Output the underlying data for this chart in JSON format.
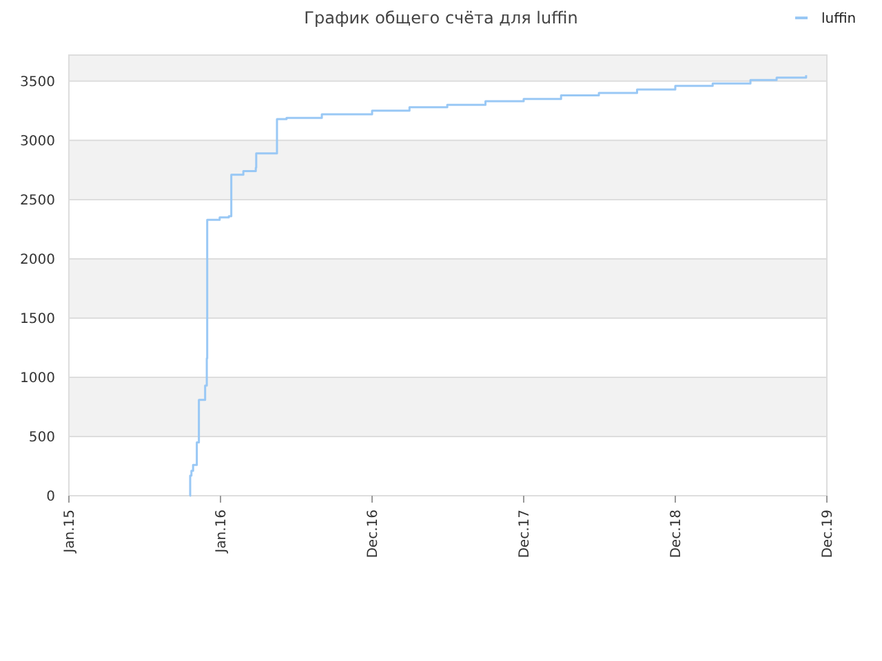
{
  "chart_data": {
    "type": "step",
    "title": "График общего счёта для luffin",
    "x": [
      "2015-10-19",
      "2015-10-20",
      "2015-10-23",
      "2015-10-27",
      "2015-11-05",
      "2015-11-10",
      "2015-11-25",
      "2015-11-29",
      "2015-11-30",
      "2015-12-30",
      "2016-01-21",
      "2016-01-27",
      "2016-02-25",
      "2016-03-26",
      "2016-03-27",
      "2016-05-16",
      "2016-06-08",
      "2016-09-01",
      "2016-12-31",
      "2017-03-31",
      "2017-06-30",
      "2017-09-30",
      "2017-12-31",
      "2018-03-31",
      "2018-06-30",
      "2018-09-30",
      "2018-12-31",
      "2019-03-31",
      "2019-06-30",
      "2019-09-01",
      "2019-11-11"
    ],
    "series": [
      {
        "name": "luffin",
        "color": "#99c8f5",
        "values": [
          0,
          170,
          210,
          260,
          450,
          810,
          930,
          1160,
          2330,
          2350,
          2360,
          2710,
          2740,
          2770,
          2890,
          3180,
          3190,
          3220,
          3250,
          3280,
          3300,
          3330,
          3350,
          3380,
          3400,
          3430,
          3460,
          3480,
          3510,
          3530,
          3550
        ]
      }
    ],
    "xlim": [
      "2015-01-01",
      "2019-12-31"
    ],
    "xticks": [
      {
        "value": "2015-01-01",
        "label": "Jan.15"
      },
      {
        "value": "2016-01-01",
        "label": "Jan.16"
      },
      {
        "value": "2016-12-31",
        "label": "Dec.16"
      },
      {
        "value": "2017-12-31",
        "label": "Dec.17"
      },
      {
        "value": "2018-12-31",
        "label": "Dec.18"
      },
      {
        "value": "2019-12-31",
        "label": "Dec.19"
      }
    ],
    "ylim": [
      0,
      3720
    ],
    "yticks": [
      0,
      500,
      1000,
      1500,
      2000,
      2500,
      3000,
      3500
    ],
    "grid": "y",
    "legend": "top right"
  }
}
